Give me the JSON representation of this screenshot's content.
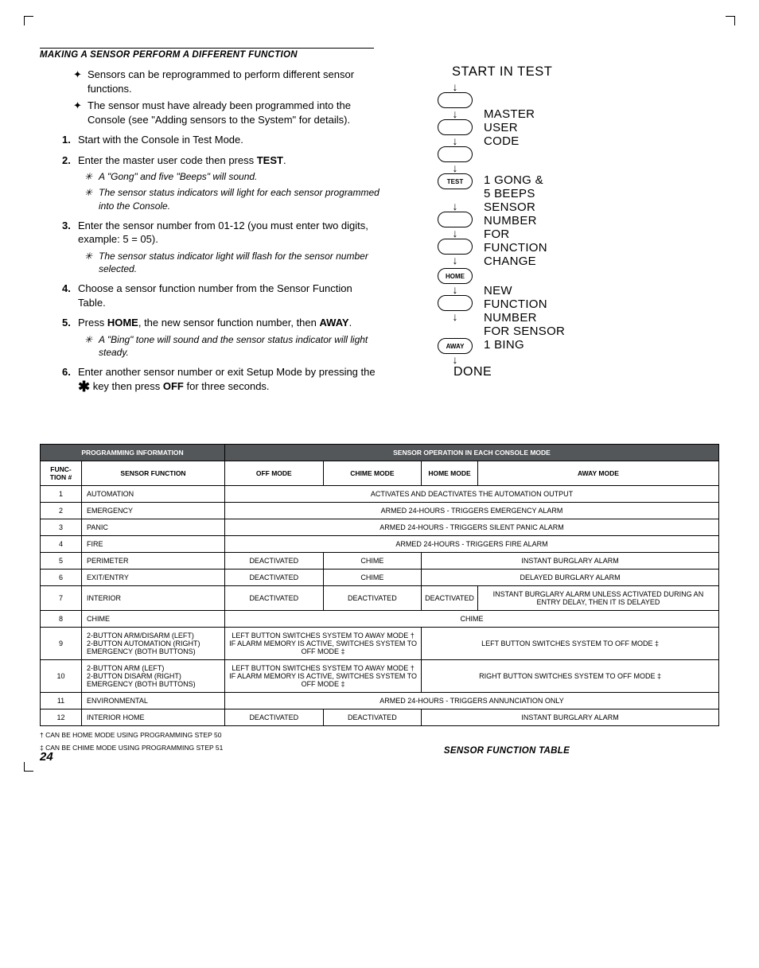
{
  "section_title": "MAKING A SENSOR PERFORM A DIFFERENT FUNCTION",
  "bullets": [
    "Sensors can be reprogrammed to perform different sensor functions.",
    "The sensor must have already been programmed into the Console (see \"Adding sensors to the System\" for details)."
  ],
  "steps": [
    {
      "n": "1.",
      "t": "Start with the Console in Test Mode."
    },
    {
      "n": "2.",
      "t": "Enter the master user code then press ",
      "bold": "TEST",
      "after": "."
    },
    {
      "n": "3.",
      "t": "Enter the sensor number from 01-12 (you must enter two digits, example: 5 = 05)."
    },
    {
      "n": "4.",
      "t": "Choose a sensor function number from the Sensor Function Table."
    },
    {
      "n": "5.",
      "t": "Press ",
      "bold": "HOME",
      "after": ", the new sensor function number, then ",
      "bold2": "AWAY",
      "after2": "."
    },
    {
      "n": "6.",
      "t": "Enter another sensor number or exit Setup Mode by pressing the ",
      "star": true,
      "after": " key then press ",
      "bold": "OFF",
      "after2": " for three seconds."
    }
  ],
  "subs": {
    "2": [
      "A \"Gong\" and five \"Beeps\" will sound.",
      "The sensor status indicators will light for each sensor programmed into the Console."
    ],
    "3": [
      "The sensor status indicator light will flash for the sensor number selected."
    ],
    "5": [
      "A \"Bing\" tone will sound and the sensor status indicator will light steady."
    ]
  },
  "flow": {
    "title": "START IN TEST",
    "master": "MASTER\nUSER\nCODE",
    "test_btn": "TEST",
    "gong": "1 GONG &\n5 BEEPS",
    "sensor": "SENSOR\nNUMBER\nFOR\nFUNCTION\nCHANGE",
    "home_btn": "HOME",
    "new": "NEW\nFUNCTION\nNUMBER\nFOR SENSOR",
    "away_btn": "AWAY",
    "bing": "1 BING",
    "done": "DONE"
  },
  "table": {
    "hdr1": {
      "prog": "PROGRAMMING INFORMATION",
      "op": "SENSOR OPERATION IN EACH CONSOLE MODE"
    },
    "hdr2": {
      "fn": "FUNC-\nTION #",
      "sf": "SENSOR FUNCTION",
      "off": "OFF MODE",
      "chime": "CHIME MODE",
      "home": "HOME MODE",
      "away": "AWAY MODE"
    },
    "rows": [
      {
        "n": "1",
        "f": "AUTOMATION",
        "span4": "ACTIVATES AND DEACTIVATES THE AUTOMATION OUTPUT"
      },
      {
        "n": "2",
        "f": "EMERGENCY",
        "span4": "ARMED 24-HOURS - TRIGGERS EMERGENCY ALARM"
      },
      {
        "n": "3",
        "f": "PANIC",
        "span4": "ARMED 24-HOURS - TRIGGERS SILENT PANIC ALARM"
      },
      {
        "n": "4",
        "f": "FIRE",
        "span4": "ARMED 24-HOURS - TRIGGERS FIRE ALARM"
      },
      {
        "n": "5",
        "f": "PERIMETER",
        "c": [
          "DEACTIVATED",
          "CHIME"
        ],
        "span2": "INSTANT BURGLARY ALARM"
      },
      {
        "n": "6",
        "f": "EXIT/ENTRY",
        "c": [
          "DEACTIVATED",
          "CHIME"
        ],
        "span2": "DELAYED BURGLARY ALARM"
      },
      {
        "n": "7",
        "f": "INTERIOR",
        "c4": [
          "DEACTIVATED",
          "DEACTIVATED",
          "DEACTIVATED",
          "INSTANT BURGLARY ALARM UNLESS ACTIVATED DURING AN ENTRY DELAY, THEN IT IS DELAYED"
        ]
      },
      {
        "n": "8",
        "f": "CHIME",
        "span4": "CHIME"
      },
      {
        "n": "9",
        "f": "2-BUTTON ARM/DISARM (LEFT)\n2-BUTTON AUTOMATION (RIGHT)\nEMERGENCY (BOTH BUTTONS)",
        "span2l": "LEFT BUTTON SWITCHES SYSTEM TO AWAY MODE †\nIF ALARM MEMORY IS ACTIVE, SWITCHES SYSTEM TO OFF MODE ‡",
        "span2r": "LEFT BUTTON SWITCHES SYSTEM TO OFF MODE ‡"
      },
      {
        "n": "10",
        "f": "2-BUTTON ARM (LEFT)\n2-BUTTON DISARM (RIGHT)\nEMERGENCY (BOTH BUTTONS)",
        "span2l": "LEFT BUTTON SWITCHES SYSTEM TO AWAY MODE †\nIF ALARM MEMORY IS ACTIVE, SWITCHES SYSTEM TO OFF MODE ‡",
        "span2r": "RIGHT BUTTON SWITCHES SYSTEM TO OFF MODE ‡"
      },
      {
        "n": "11",
        "f": "ENVIRONMENTAL",
        "span4": "ARMED 24-HOURS - TRIGGERS ANNUNCIATION ONLY"
      },
      {
        "n": "12",
        "f": "INTERIOR HOME",
        "c": [
          "DEACTIVATED",
          "DEACTIVATED"
        ],
        "span2": "INSTANT BURGLARY ALARM"
      }
    ]
  },
  "foot1": "† CAN BE HOME MODE USING PROGRAMMING STEP 50",
  "foot2": "‡ CAN BE CHIME MODE USING PROGRAMMING STEP 51",
  "tbl_title": "SENSOR FUNCTION TABLE",
  "page": "24"
}
